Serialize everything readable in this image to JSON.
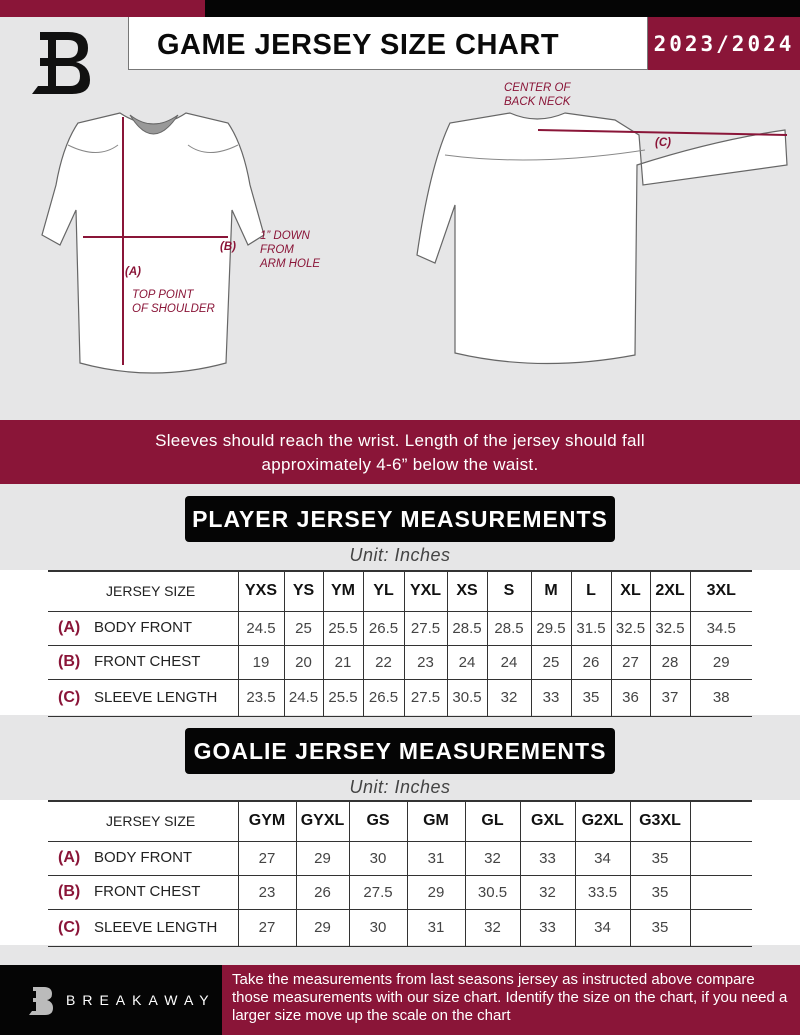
{
  "header": {
    "title": "GAME JERSEY SIZE CHART",
    "season": "2023/2024",
    "logo_letter": "B"
  },
  "diagram": {
    "front_labels": {
      "a_marker": "(A)",
      "a_desc_1": "TOP POINT",
      "a_desc_2": "OF SHOULDER",
      "b_marker": "(B)",
      "b_desc_1": "1” DOWN",
      "b_desc_2": "FROM",
      "b_desc_3": "ARM HOLE"
    },
    "back_labels": {
      "c_desc_1": "CENTER OF",
      "c_desc_2": "BACK NECK",
      "c_marker": "(C)"
    }
  },
  "instructions": {
    "line1": "Sleeves should reach the wrist. Length of the jersey should fall",
    "line2": "approximately 4-6” below the waist."
  },
  "player": {
    "title": "PLAYER JERSEY MEASUREMENTS",
    "unit": "Unit: Inches",
    "header_label": "JERSEY SIZE",
    "sizes": [
      "YXS",
      "YS",
      "YM",
      "YL",
      "YXL",
      "XS",
      "S",
      "M",
      "L",
      "XL",
      "2XL",
      "3XL"
    ],
    "rows": [
      {
        "marker": "(A)",
        "label": "BODY FRONT",
        "values": [
          "24.5",
          "25",
          "25.5",
          "26.5",
          "27.5",
          "28.5",
          "28.5",
          "29.5",
          "31.5",
          "32.5",
          "32.5",
          "34.5"
        ]
      },
      {
        "marker": "(B)",
        "label": "FRONT CHEST",
        "values": [
          "19",
          "20",
          "21",
          "22",
          "23",
          "24",
          "24",
          "25",
          "26",
          "27",
          "28",
          "29"
        ]
      },
      {
        "marker": "(C)",
        "label": "SLEEVE LENGTH",
        "values": [
          "23.5",
          "24.5",
          "25.5",
          "26.5",
          "27.5",
          "30.5",
          "32",
          "33",
          "35",
          "36",
          "37",
          "38"
        ]
      }
    ]
  },
  "goalie": {
    "title": "GOALIE JERSEY MEASUREMENTS",
    "unit": "Unit: Inches",
    "header_label": "JERSEY SIZE",
    "sizes": [
      "GYM",
      "GYXL",
      "GS",
      "GM",
      "GL",
      "GXL",
      "G2XL",
      "G3XL",
      ""
    ],
    "rows": [
      {
        "marker": "(A)",
        "label": "BODY FRONT",
        "values": [
          "27",
          "29",
          "30",
          "31",
          "32",
          "33",
          "34",
          "35",
          ""
        ]
      },
      {
        "marker": "(B)",
        "label": "FRONT CHEST",
        "values": [
          "23",
          "26",
          "27.5",
          "29",
          "30.5",
          "32",
          "33.5",
          "35",
          ""
        ]
      },
      {
        "marker": "(C)",
        "label": "SLEEVE LENGTH",
        "values": [
          "27",
          "29",
          "30",
          "31",
          "32",
          "33",
          "34",
          "35",
          ""
        ]
      }
    ]
  },
  "footer": {
    "brand": "BREAKAWAY",
    "text": "Take the measurements from last seasons jersey as instructed above compare those measurements  with our size chart. Identify the size on the chart, if you need a larger size move up the scale on the chart"
  },
  "colors": {
    "accent": "#8a1538",
    "dark": "#050505",
    "background": "#e6e6e7"
  }
}
